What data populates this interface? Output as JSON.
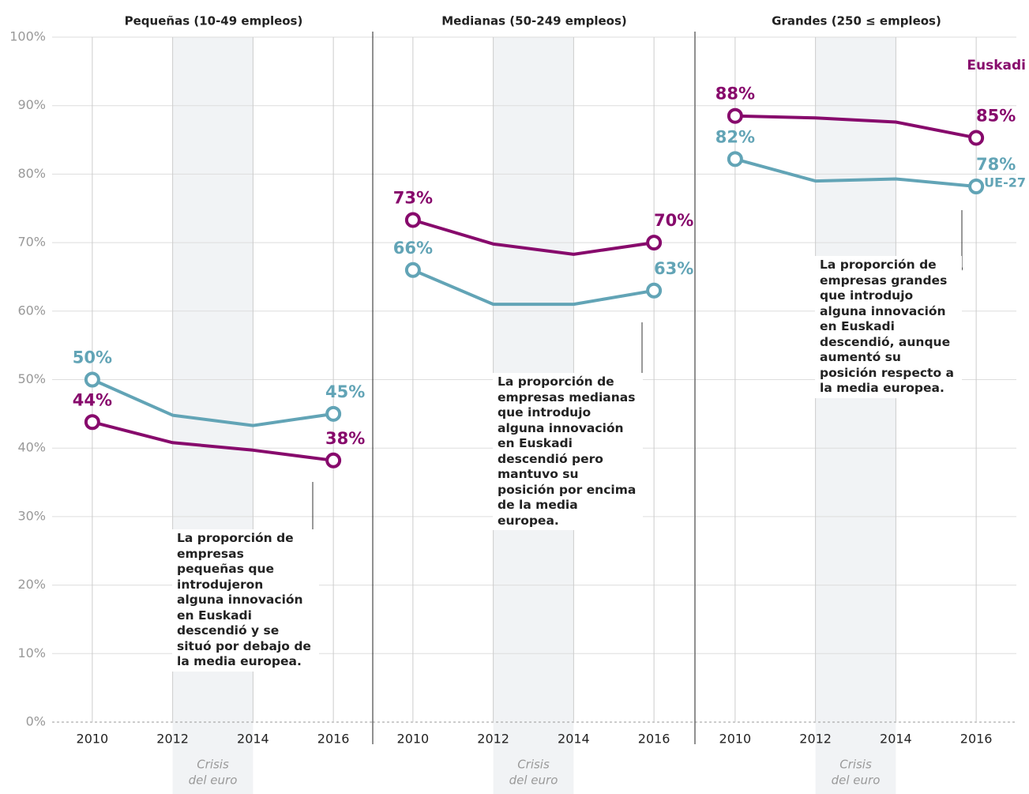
{
  "chart_data": [
    {
      "type": "line",
      "title": "Pequeñas (10-49 empleos)",
      "x": [
        2010,
        2012,
        2014,
        2016
      ],
      "xlim": [
        2009,
        2017
      ],
      "xticks": [
        2010,
        2012,
        2014,
        2016
      ],
      "ylim": [
        0,
        100
      ],
      "yticks": [
        {
          "value": 0,
          "label": "0%"
        },
        {
          "value": 10,
          "label": "10%"
        },
        {
          "value": 20,
          "label": "20%"
        },
        {
          "value": 30,
          "label": "30%"
        },
        {
          "value": 40,
          "label": "40%"
        },
        {
          "value": 50,
          "label": "50%"
        },
        {
          "value": 60,
          "label": "60%"
        },
        {
          "value": 70,
          "label": "70%"
        },
        {
          "value": 80,
          "label": "80%"
        },
        {
          "value": 90,
          "label": "90%"
        },
        {
          "value": 100,
          "label": "100%"
        }
      ],
      "grid": true,
      "shade": [
        2012,
        2014
      ],
      "shade_label": [
        "Crisis",
        "del euro"
      ],
      "annotation": "La proporción de empresas pequeñas que introdujeron alguna innovación en Euskadi descendió y se situó por debajo de la media europea.",
      "series": [
        {
          "color": "#870a6c",
          "values": [
            43.8,
            40.8,
            39.7,
            38.2
          ],
          "value_labels": [
            "44%",
            null,
            null,
            "38%"
          ]
        },
        {
          "color": "#62a4b6",
          "values": [
            50,
            44.8,
            43.3,
            45
          ],
          "value_labels": [
            "50%",
            null,
            null,
            "45%"
          ]
        }
      ]
    },
    {
      "type": "line",
      "title": "Medianas (50-249 empleos)",
      "x": [
        2010,
        2012,
        2014,
        2016
      ],
      "xlim": [
        2009,
        2017
      ],
      "xticks": [
        2010,
        2012,
        2014,
        2016
      ],
      "ylim": [
        0,
        100
      ],
      "shade": [
        2012,
        2014
      ],
      "shade_label": [
        "Crisis",
        "del euro"
      ],
      "annotation": "La proporción de empresas medianas que introdujo alguna innovación en Euskadi descendió pero mantuvo su posición por encima de la media europea.",
      "series": [
        {
          "color": "#870a6c",
          "values": [
            73.3,
            69.8,
            68.3,
            70
          ],
          "value_labels": [
            "73%",
            null,
            null,
            "70%"
          ]
        },
        {
          "color": "#62a4b6",
          "values": [
            66,
            61,
            61,
            63
          ],
          "value_labels": [
            "66%",
            null,
            null,
            "63%"
          ]
        }
      ]
    },
    {
      "type": "line",
      "title": "Grandes (250 ≤ empleos)",
      "x": [
        2010,
        2012,
        2014,
        2016
      ],
      "xlim": [
        2009,
        2017
      ],
      "xticks": [
        2010,
        2012,
        2014,
        2016
      ],
      "ylim": [
        0,
        100
      ],
      "shade": [
        2012,
        2014
      ],
      "shade_label": [
        "Crisis",
        "del euro"
      ],
      "annotation": "La proporción de empresas grandes que introdujo alguna innovación en Euskadi descendió, aunque aumentó su posición respecto a la media europea.",
      "series": [
        {
          "name": "Euskadi",
          "color": "#870a6c",
          "values": [
            88.5,
            88.2,
            87.6,
            85.3
          ],
          "value_labels": [
            "88%",
            null,
            null,
            "85%"
          ]
        },
        {
          "name": "UE-27",
          "color": "#62a4b6",
          "values": [
            82.2,
            79,
            79.3,
            78.2
          ],
          "value_labels": [
            "82%",
            null,
            null,
            "78%"
          ]
        }
      ]
    }
  ]
}
